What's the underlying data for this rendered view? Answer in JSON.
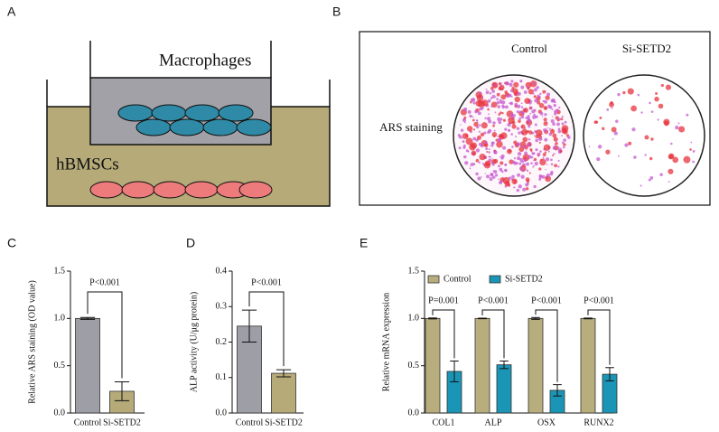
{
  "panel_labels": [
    "A",
    "B",
    "C",
    "D",
    "E"
  ],
  "diagram": {
    "insert_label": "Macrophages",
    "well_label": "hBMSCs"
  },
  "staining": {
    "columns": [
      "Control",
      "Si-SETD2"
    ],
    "row_label": "ARS staining"
  },
  "chart_data": [
    {
      "type": "bar",
      "ylabel": "Relative ARS staining (OD value)",
      "categories": [
        "Control",
        "Si-SETD2"
      ],
      "values": [
        1.0,
        0.23
      ],
      "errors": [
        0.01,
        0.1
      ],
      "colors": [
        "#9e9ea6",
        "#b5aa78"
      ],
      "annotations": [
        "P<0.001"
      ],
      "ylim": [
        0,
        1.5
      ],
      "yticks": [
        {
          "value": 0,
          "label": "0.0"
        },
        0.5,
        {
          "value": 1,
          "label": "1.0"
        },
        1.5
      ]
    },
    {
      "type": "bar",
      "ylabel": "ALP activity (U/μg protein)",
      "categories": [
        "Control",
        "Si-SETD2"
      ],
      "values": [
        0.245,
        0.112
      ],
      "errors": [
        0.045,
        0.01
      ],
      "colors": [
        "#9e9ea6",
        "#b5aa78"
      ],
      "annotations": [
        "P<0.001"
      ],
      "ylim": [
        0,
        0.4
      ],
      "yticks": [
        {
          "value": 0,
          "label": "0.0"
        },
        0.1,
        0.2,
        0.3,
        0.4
      ]
    },
    {
      "type": "grouped_bar",
      "ylabel": "Relative mRNA expression",
      "categories": [
        "COL1",
        "ALP",
        "OSX",
        "RUNX2"
      ],
      "series": [
        {
          "name": "Control",
          "color": "#b8ad7c",
          "values": [
            1.0,
            1.0,
            1.0,
            1.0
          ],
          "errors": [
            0.005,
            0.003,
            0.01,
            0.004
          ]
        },
        {
          "name": "Si-SETD2",
          "color": "#1b95b5",
          "values": [
            0.44,
            0.51,
            0.24,
            0.41
          ],
          "errors": [
            0.11,
            0.04,
            0.06,
            0.07
          ]
        }
      ],
      "annotations": [
        "P=0.001",
        "P<0.001",
        "P<0.001",
        "P<0.001"
      ],
      "legend": "top-left",
      "ylim": [
        0,
        1.5
      ],
      "yticks": [
        {
          "value": 0,
          "label": "0.0"
        },
        0.5,
        {
          "value": 1,
          "label": "1.0"
        },
        1.5
      ]
    }
  ]
}
